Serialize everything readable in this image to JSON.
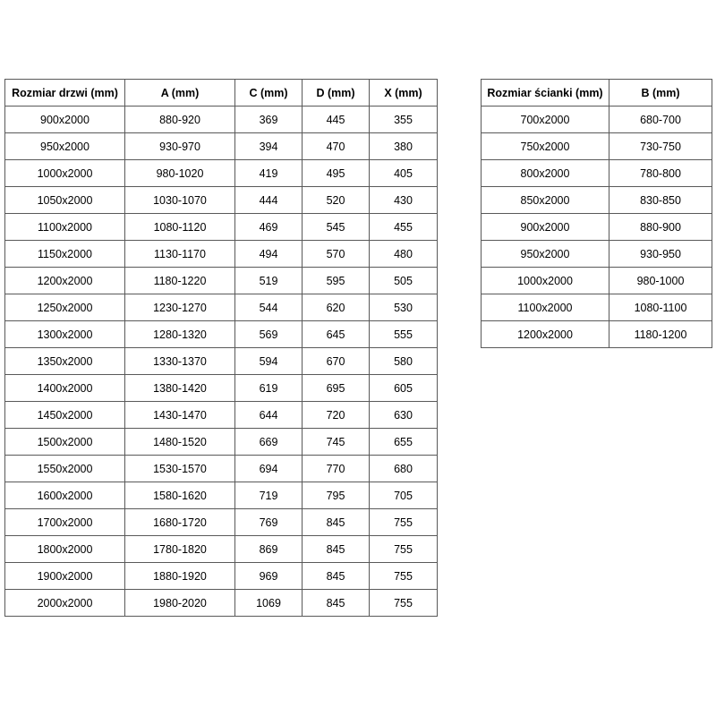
{
  "colors": {
    "border": "#595959",
    "text": "#000000",
    "background": "#ffffff"
  },
  "doors_table": {
    "headers": [
      "Rozmiar drzwi (mm)",
      "A (mm)",
      "C (mm)",
      "D (mm)",
      "X (mm)"
    ],
    "rows": [
      [
        "900x2000",
        "880-920",
        "369",
        "445",
        "355"
      ],
      [
        "950x2000",
        "930-970",
        "394",
        "470",
        "380"
      ],
      [
        "1000x2000",
        "980-1020",
        "419",
        "495",
        "405"
      ],
      [
        "1050x2000",
        "1030-1070",
        "444",
        "520",
        "430"
      ],
      [
        "1100x2000",
        "1080-1120",
        "469",
        "545",
        "455"
      ],
      [
        "1150x2000",
        "1130-1170",
        "494",
        "570",
        "480"
      ],
      [
        "1200x2000",
        "1180-1220",
        "519",
        "595",
        "505"
      ],
      [
        "1250x2000",
        "1230-1270",
        "544",
        "620",
        "530"
      ],
      [
        "1300x2000",
        "1280-1320",
        "569",
        "645",
        "555"
      ],
      [
        "1350x2000",
        "1330-1370",
        "594",
        "670",
        "580"
      ],
      [
        "1400x2000",
        "1380-1420",
        "619",
        "695",
        "605"
      ],
      [
        "1450x2000",
        "1430-1470",
        "644",
        "720",
        "630"
      ],
      [
        "1500x2000",
        "1480-1520",
        "669",
        "745",
        "655"
      ],
      [
        "1550x2000",
        "1530-1570",
        "694",
        "770",
        "680"
      ],
      [
        "1600x2000",
        "1580-1620",
        "719",
        "795",
        "705"
      ],
      [
        "1700x2000",
        "1680-1720",
        "769",
        "845",
        "755"
      ],
      [
        "1800x2000",
        "1780-1820",
        "869",
        "845",
        "755"
      ],
      [
        "1900x2000",
        "1880-1920",
        "969",
        "845",
        "755"
      ],
      [
        "2000x2000",
        "1980-2020",
        "1069",
        "845",
        "755"
      ]
    ]
  },
  "walls_table": {
    "headers": [
      "Rozmiar ścianki (mm)",
      "B (mm)"
    ],
    "rows": [
      [
        "700x2000",
        "680-700"
      ],
      [
        "750x2000",
        "730-750"
      ],
      [
        "800x2000",
        "780-800"
      ],
      [
        "850x2000",
        "830-850"
      ],
      [
        "900x2000",
        "880-900"
      ],
      [
        "950x2000",
        "930-950"
      ],
      [
        "1000x2000",
        "980-1000"
      ],
      [
        "1100x2000",
        "1080-1100"
      ],
      [
        "1200x2000",
        "1180-1200"
      ]
    ]
  }
}
